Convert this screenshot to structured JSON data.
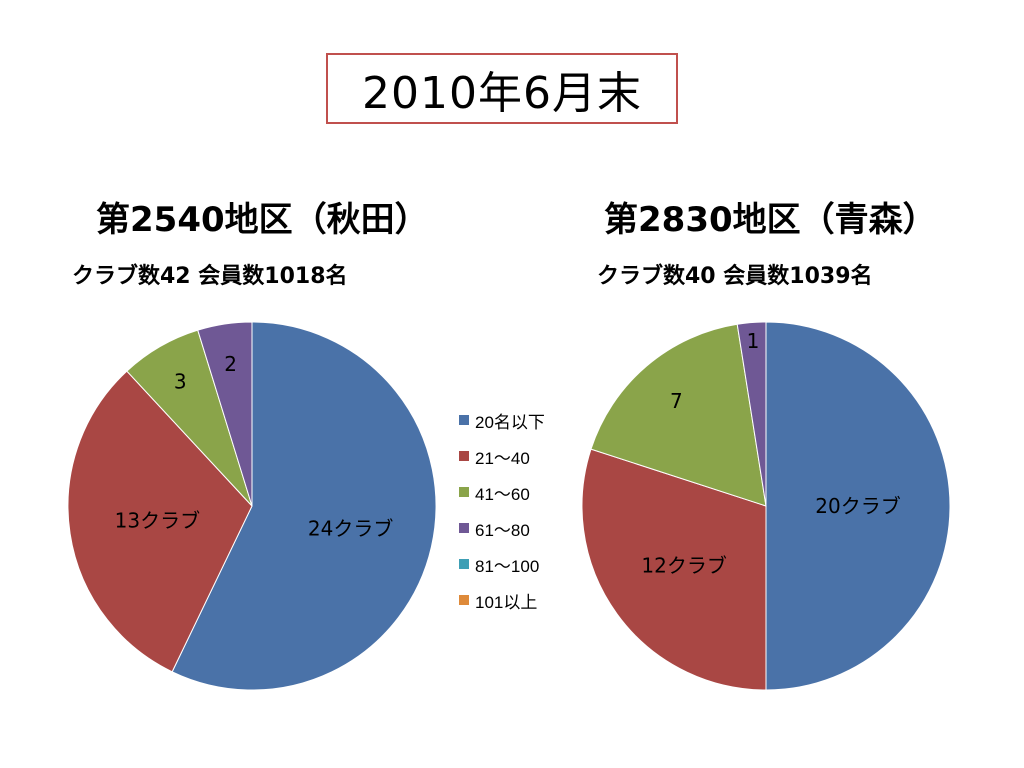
{
  "page": {
    "title": "2010年6月末"
  },
  "regions": [
    {
      "title": "第2540地区（秋田）",
      "subtitle": "クラブ数42  会員数1018名"
    },
    {
      "title": "第2830地区（青森）",
      "subtitle": "クラブ数40  会員数1039名"
    }
  ],
  "legend": [
    {
      "label": "20名以下",
      "color": "#4a72a8"
    },
    {
      "label": "21〜40",
      "color": "#a94744"
    },
    {
      "label": "41〜60",
      "color": "#8aa44a"
    },
    {
      "label": "61〜80",
      "color": "#6f5895"
    },
    {
      "label": "81〜100",
      "color": "#3e9fb5"
    },
    {
      "label": "101以上",
      "color": "#de8a3a"
    }
  ],
  "chart_data": [
    {
      "type": "pie",
      "title": "第2540地区（秋田）",
      "categories": [
        "20名以下",
        "21〜40",
        "41〜60",
        "61〜80",
        "81〜100",
        "101以上"
      ],
      "values": [
        24,
        13,
        3,
        2,
        0,
        0
      ],
      "data_labels": [
        "24クラブ",
        "13クラブ",
        "3",
        "2",
        "",
        ""
      ],
      "legend_position": "center-between-charts"
    },
    {
      "type": "pie",
      "title": "第2830地区（青森）",
      "categories": [
        "20名以下",
        "21〜40",
        "41〜60",
        "61〜80",
        "81〜100",
        "101以上"
      ],
      "values": [
        20,
        12,
        7,
        1,
        0,
        0
      ],
      "data_labels": [
        "20クラブ",
        "12クラブ",
        "7",
        "1",
        "",
        ""
      ],
      "legend_position": "center-between-charts"
    }
  ]
}
